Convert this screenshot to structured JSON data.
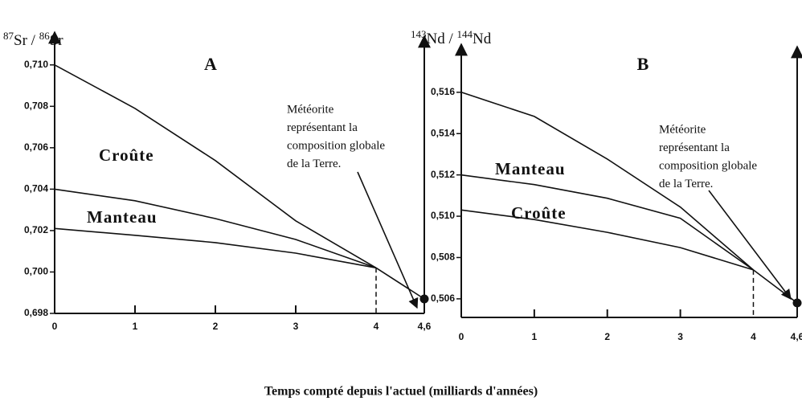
{
  "figure": {
    "xlabel": "Temps compté depuis l'actuel (milliards d'années)"
  },
  "chart_data": [
    {
      "type": "line",
      "title": "A",
      "ylabel": [
        "87",
        "Sr / ",
        "86",
        "Sr"
      ],
      "color": "#111111",
      "annotations": [
        "Croûte",
        "Manteau"
      ],
      "note": [
        "Météorite",
        "représentant la",
        "composition globale",
        "de la Terre."
      ],
      "xlim": [
        0,
        4.6
      ],
      "ylim": [
        0.698,
        0.711
      ],
      "xticks": [
        0,
        1,
        2,
        3,
        4,
        {
          "value": 4.6,
          "label": "4,6"
        }
      ],
      "yticks": [
        {
          "value": 0.698,
          "label": "0,698"
        },
        {
          "value": 0.7,
          "label": "0,700"
        },
        {
          "value": 0.702,
          "label": "0,702"
        },
        {
          "value": 0.704,
          "label": "0,704"
        },
        {
          "value": 0.706,
          "label": "0,706"
        },
        {
          "value": 0.708,
          "label": "0,708"
        },
        {
          "value": 0.71,
          "label": "0,710"
        }
      ],
      "series": [
        {
          "x": [
            0,
            1,
            2,
            3,
            4
          ],
          "values": [
            0.71,
            0.7079,
            0.70538,
            0.70247,
            0.7002
          ]
        },
        {
          "x": [
            0,
            1,
            2,
            3,
            4
          ],
          "values": [
            0.704,
            0.70344,
            0.70258,
            0.70157,
            0.7002
          ]
        },
        {
          "x": [
            0,
            1,
            2,
            3,
            4
          ],
          "values": [
            0.7021,
            0.70177,
            0.70142,
            0.70091,
            0.7002
          ]
        },
        {
          "x": [
            4,
            4.6
          ],
          "values": [
            0.7002,
            0.6987
          ],
          "marker": true
        }
      ]
    },
    {
      "type": "line",
      "title": "B",
      "ylabel": [
        "143",
        "Nd / ",
        "144",
        "Nd"
      ],
      "color": "#111111",
      "annotations": [
        "Manteau",
        "Croûte"
      ],
      "note": [
        "Météorite",
        "représentant la",
        "composition globale",
        "de la Terre."
      ],
      "xlim": [
        0,
        4.6
      ],
      "ylim": [
        0.5051,
        0.5172
      ],
      "xticks": [
        0,
        1,
        2,
        3,
        4,
        {
          "value": 4.6,
          "label": "4,6"
        }
      ],
      "yticks": [
        {
          "value": 0.506,
          "label": "0,506"
        },
        {
          "value": 0.508,
          "label": "0,508"
        },
        {
          "value": 0.51,
          "label": "0,510"
        },
        {
          "value": 0.512,
          "label": "0,512"
        },
        {
          "value": 0.514,
          "label": "0,514"
        },
        {
          "value": 0.516,
          "label": "0,516"
        }
      ],
      "series": [
        {
          "x": [
            0,
            1,
            2,
            3,
            4
          ],
          "values": [
            0.516,
            0.51483,
            0.51277,
            0.51044,
            0.5074
          ]
        },
        {
          "x": [
            0,
            1,
            2,
            3,
            4
          ],
          "values": [
            0.512,
            0.51153,
            0.51087,
            0.5099,
            0.5074
          ]
        },
        {
          "x": [
            0,
            1,
            2,
            3,
            4
          ],
          "values": [
            0.5103,
            0.50984,
            0.50922,
            0.50848,
            0.5074
          ]
        },
        {
          "x": [
            4,
            4.6
          ],
          "values": [
            0.5074,
            0.5058
          ],
          "marker": true
        }
      ]
    }
  ]
}
